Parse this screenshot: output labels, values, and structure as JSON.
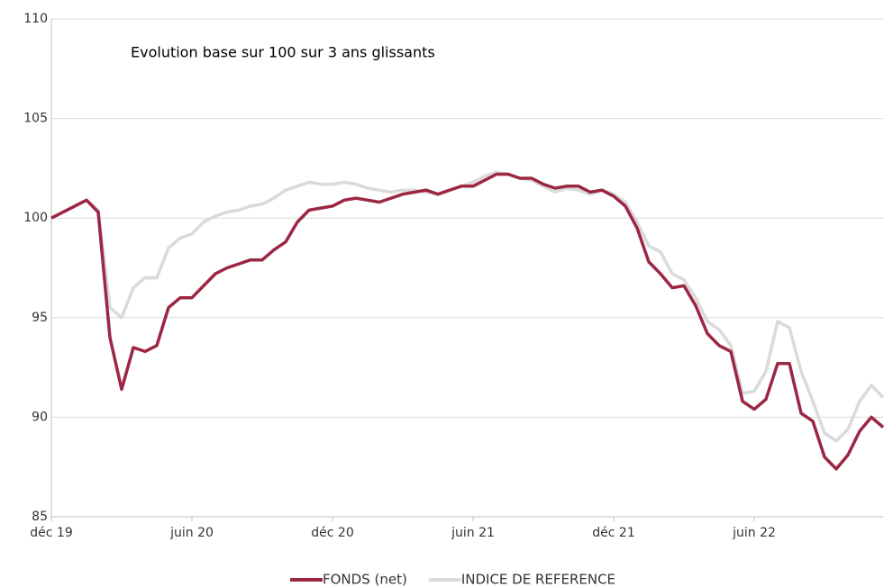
{
  "chart_data": {
    "type": "line",
    "annotation": "Evolution base sur 100 sur 3 ans glissants",
    "categories": [
      "déc 19",
      null,
      null,
      null,
      null,
      null,
      null,
      null,
      null,
      null,
      null,
      null,
      "juin 20",
      null,
      null,
      null,
      null,
      null,
      null,
      null,
      null,
      null,
      null,
      null,
      "déc 20",
      null,
      null,
      null,
      null,
      null,
      null,
      null,
      null,
      null,
      null,
      null,
      "juin 21",
      null,
      null,
      null,
      null,
      null,
      null,
      null,
      null,
      null,
      null,
      null,
      "déc 21",
      null,
      null,
      null,
      null,
      null,
      null,
      null,
      null,
      null,
      null,
      null,
      "juin 22",
      null,
      null,
      null,
      null,
      null,
      null,
      null,
      null,
      null,
      null,
      null
    ],
    "series": [
      {
        "name": "FONDS (net)",
        "color": "#9b2743",
        "values": [
          100.0,
          100.3,
          100.6,
          100.9,
          100.3,
          94.0,
          91.4,
          93.5,
          93.3,
          93.6,
          95.5,
          96.0,
          96.0,
          96.6,
          97.2,
          97.5,
          97.7,
          97.9,
          97.9,
          98.4,
          98.8,
          99.8,
          100.4,
          100.5,
          100.6,
          100.9,
          101.0,
          100.9,
          100.8,
          101.0,
          101.2,
          101.3,
          101.4,
          101.2,
          101.4,
          101.6,
          101.6,
          101.9,
          102.2,
          102.2,
          102.0,
          102.0,
          101.7,
          101.5,
          101.6,
          101.6,
          101.3,
          101.4,
          101.1,
          100.6,
          99.5,
          97.8,
          97.2,
          96.5,
          96.6,
          95.6,
          94.2,
          93.6,
          93.3,
          90.8,
          90.4,
          90.9,
          92.7,
          92.7,
          90.2,
          89.8,
          88.0,
          87.4,
          88.1,
          89.3,
          90.0,
          89.5
        ]
      },
      {
        "name": "INDICE DE REFERENCE",
        "color": "#dadada",
        "values": [
          100.0,
          100.3,
          100.6,
          100.9,
          100.4,
          95.5,
          95.0,
          96.5,
          97.0,
          97.0,
          98.5,
          99.0,
          99.2,
          99.8,
          100.1,
          100.3,
          100.4,
          100.6,
          100.7,
          101.0,
          101.4,
          101.6,
          101.8,
          101.7,
          101.7,
          101.8,
          101.7,
          101.5,
          101.4,
          101.3,
          101.4,
          101.4,
          101.3,
          101.2,
          101.4,
          101.6,
          101.8,
          102.1,
          102.3,
          102.2,
          102.0,
          101.9,
          101.6,
          101.3,
          101.5,
          101.4,
          101.2,
          101.4,
          101.2,
          100.8,
          99.8,
          98.6,
          98.3,
          97.2,
          96.9,
          96.0,
          94.8,
          94.4,
          93.6,
          91.2,
          91.3,
          92.3,
          94.8,
          94.5,
          92.3,
          90.8,
          89.2,
          88.8,
          89.4,
          90.8,
          91.6,
          91.0
        ]
      }
    ],
    "ylim": [
      85,
      110
    ],
    "yticks": [
      85,
      90,
      95,
      100,
      105,
      110
    ],
    "grid": true,
    "legend": "bottom"
  }
}
